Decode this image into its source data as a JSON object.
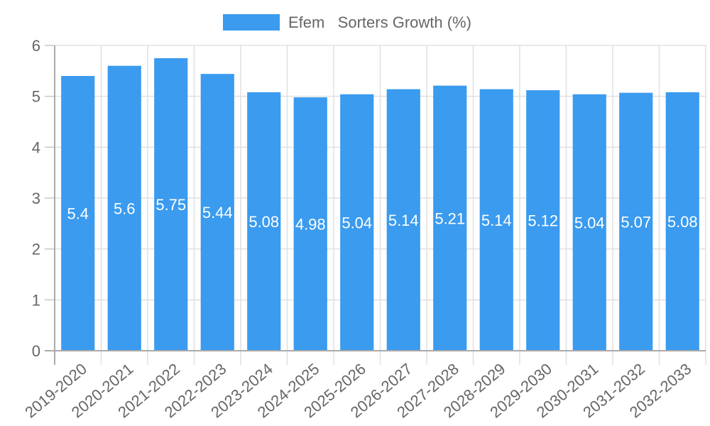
{
  "chart_data": {
    "type": "bar",
    "title": "",
    "xlabel": "",
    "ylabel": "",
    "categories": [
      "2019-2020",
      "2020-2021",
      "2021-2022",
      "2022-2023",
      "2023-2024",
      "2024-2025",
      "2025-2026",
      "2026-2027",
      "2027-2028",
      "2028-2029",
      "2029-2030",
      "2030-2031",
      "2031-2032",
      "2032-2033"
    ],
    "series": [
      {
        "name": "Efem   Sorters Growth (%)",
        "color": "#3a9bef",
        "values": [
          5.4,
          5.6,
          5.75,
          5.44,
          5.08,
          4.98,
          5.04,
          5.14,
          5.21,
          5.14,
          5.12,
          5.04,
          5.07,
          5.08
        ]
      }
    ],
    "ylim": [
      0,
      6
    ],
    "yticks": [
      0,
      1,
      2,
      3,
      4,
      5,
      6
    ],
    "grid": true,
    "legend_position": "top",
    "data_labels": true
  },
  "legend": {
    "label": "Efem   Sorters Growth (%)",
    "color": "#3a9bef"
  }
}
